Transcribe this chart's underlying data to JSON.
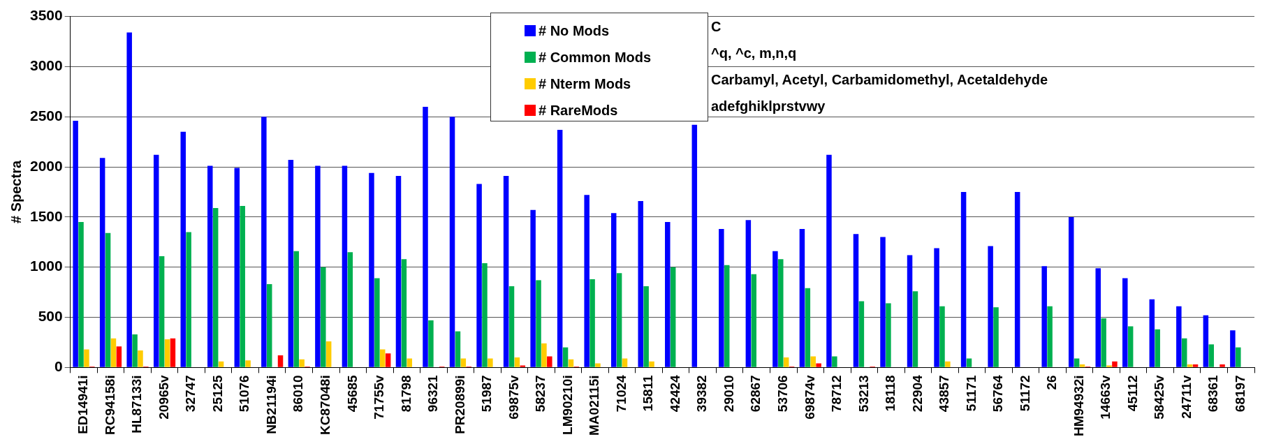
{
  "chart_data": {
    "type": "bar",
    "ylabel": "# Spectra",
    "categories": [
      "ED14941i",
      "RC94158i",
      "HL87133i",
      "20965v",
      "32747",
      "25125",
      "51076",
      "NB21194i",
      "86010",
      "KC87048i",
      "45685",
      "71755v",
      "81798",
      "96321",
      "PR20899i",
      "51987",
      "69875v",
      "58237",
      "LM90210i",
      "MA02115i",
      "71024",
      "15811",
      "42424",
      "39382",
      "29010",
      "62867",
      "53706",
      "69874v",
      "78712",
      "53213",
      "18118",
      "22904",
      "43857",
      "51171",
      "56764",
      "51172",
      "26",
      "HM94932i",
      "14663v",
      "45112",
      "58425v",
      "24711v",
      "68361",
      "68197"
    ],
    "series": [
      {
        "name": "# No Mods",
        "color": "#0000ff",
        "values": [
          2460,
          2090,
          3340,
          2120,
          2350,
          2010,
          1990,
          2500,
          2070,
          2010,
          2010,
          1940,
          1910,
          2600,
          2500,
          1830,
          1910,
          1570,
          2370,
          1720,
          1540,
          1660,
          1450,
          2420,
          1380,
          1470,
          1160,
          1380,
          2120,
          1330,
          1300,
          1120,
          1190,
          1750,
          1210,
          1750,
          1010,
          1500,
          990,
          890,
          680,
          610,
          520,
          370
        ]
      },
      {
        "name": "# Common Mods",
        "color": "#00b050",
        "values": [
          1450,
          1340,
          330,
          1110,
          1350,
          1590,
          1610,
          830,
          1160,
          1000,
          1150,
          890,
          1080,
          470,
          360,
          1040,
          810,
          870,
          200,
          880,
          940,
          810,
          1000,
          0,
          1020,
          930,
          1080,
          790,
          110,
          660,
          640,
          760,
          610,
          90,
          600,
          0,
          610,
          90,
          490,
          410,
          380,
          290,
          230,
          200
        ]
      },
      {
        "name": "# Nterm Mods",
        "color": "#ffcc00",
        "values": [
          180,
          290,
          170,
          280,
          0,
          60,
          70,
          0,
          80,
          260,
          0,
          180,
          90,
          0,
          90,
          90,
          100,
          240,
          80,
          40,
          90,
          60,
          0,
          0,
          0,
          0,
          100,
          110,
          0,
          0,
          0,
          0,
          60,
          0,
          0,
          0,
          0,
          30,
          20,
          0,
          0,
          30,
          0,
          0
        ]
      },
      {
        "name": "# RareMods",
        "color": "#ff0000",
        "values": [
          10,
          210,
          10,
          290,
          0,
          0,
          0,
          120,
          10,
          0,
          0,
          140,
          0,
          10,
          10,
          0,
          20,
          110,
          10,
          0,
          0,
          0,
          0,
          0,
          0,
          0,
          10,
          40,
          0,
          10,
          0,
          0,
          0,
          0,
          0,
          0,
          0,
          10,
          60,
          0,
          0,
          30,
          30,
          0
        ]
      }
    ],
    "ylim": [
      0,
      3500
    ],
    "yticks": [
      0,
      500,
      1000,
      1500,
      2000,
      2500,
      3000,
      3500
    ],
    "grid": "y",
    "legend": "top",
    "annotations": [
      "C",
      "^q, ^c, m,n,q",
      "Carbamyl, Acetyl, Carbamidomethyl, Acetaldehyde",
      "adefghiklprstvwy"
    ]
  }
}
